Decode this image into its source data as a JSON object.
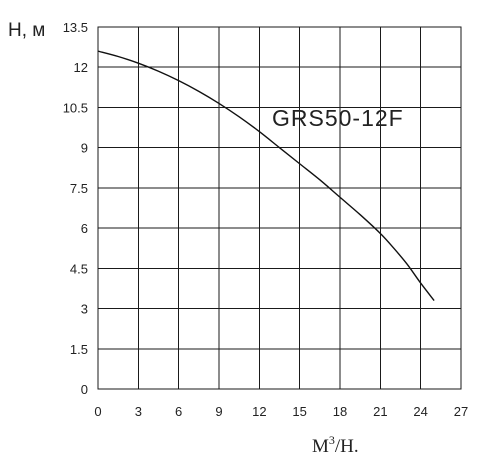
{
  "chart_data": {
    "type": "line",
    "ylabel": "H, м",
    "xlabel_base": "M",
    "xlabel_sup": "3",
    "xlabel_rest": "/H.",
    "xlim": [
      0,
      27
    ],
    "ylim": [
      0,
      13.5
    ],
    "x_ticks": [
      "0",
      "3",
      "6",
      "9",
      "12",
      "15",
      "18",
      "21",
      "24",
      "27"
    ],
    "y_ticks": [
      "0",
      "1.5",
      "3",
      "4.5",
      "6",
      "7.5",
      "9",
      "10.5",
      "12",
      "13.5"
    ],
    "grid": true,
    "series": [
      {
        "name": "GRS50-12F",
        "x": [
          0,
          1.5,
          3,
          4.5,
          6,
          7.5,
          9,
          10.5,
          12,
          13.5,
          15,
          16.5,
          18,
          19.5,
          21,
          22,
          23,
          24,
          25
        ],
        "y": [
          12.6,
          12.4,
          12.15,
          11.85,
          11.5,
          11.1,
          10.65,
          10.15,
          9.6,
          9.0,
          8.4,
          7.8,
          7.15,
          6.5,
          5.8,
          5.25,
          4.65,
          3.95,
          3.3
        ]
      }
    ]
  }
}
